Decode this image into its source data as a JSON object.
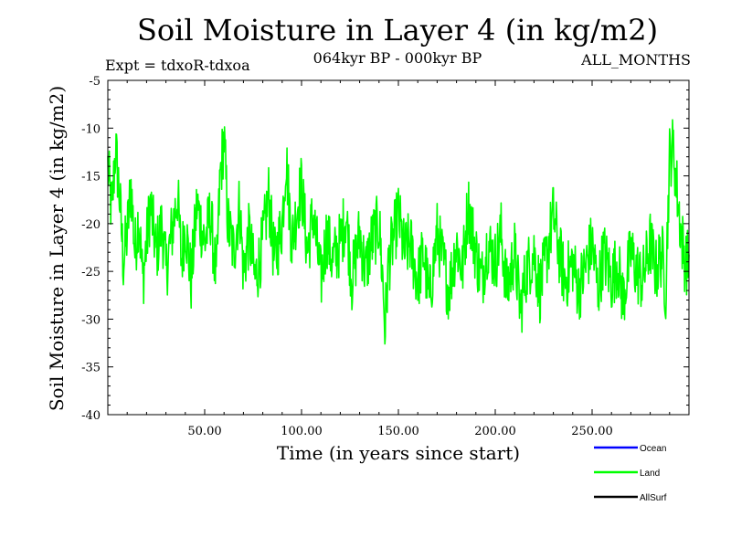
{
  "chart_data": {
    "type": "line",
    "title": "Soil Moisture in Layer 4 (in kg/m2)",
    "subtitle": "064kyr BP - 000kyr BP",
    "expt_label": "Expt = tdxoR-tdxoa",
    "months_label": "ALL_MONTHS",
    "xlabel": "Time (in years since start)",
    "ylabel": "Soil Moisture in Layer 4 (in kg/m2)",
    "xlim": [
      0,
      300
    ],
    "ylim": [
      -40,
      -5
    ],
    "x_ticks": [
      50,
      100,
      150,
      200,
      250
    ],
    "x_tick_labels": [
      "50.00",
      "100.00",
      "150.00",
      "200.00",
      "250.00"
    ],
    "y_ticks": [
      -5,
      -10,
      -15,
      -20,
      -25,
      -30,
      -35,
      -40
    ],
    "y_tick_labels": [
      "-5",
      "-10",
      "-15",
      "-20",
      "-25",
      "-30",
      "-35",
      "-40"
    ],
    "legend": [
      {
        "name": "Ocean",
        "color": "#0000ff"
      },
      {
        "name": "Land",
        "color": "#00ff00"
      },
      {
        "name": "AllSurf",
        "color": "#000000"
      }
    ],
    "series": [
      {
        "name": "Land",
        "color": "#00ff00",
        "x": [
          0,
          2,
          4,
          6,
          8,
          10,
          12,
          14,
          16,
          18,
          20,
          22,
          25,
          28,
          30,
          33,
          36,
          38,
          40,
          43,
          46,
          50,
          53,
          56,
          58,
          60,
          62,
          65,
          68,
          70,
          73,
          76,
          80,
          83,
          86,
          90,
          92,
          95,
          98,
          100,
          103,
          106,
          110,
          113,
          116,
          120,
          123,
          126,
          130,
          133,
          136,
          140,
          142,
          143,
          145,
          148,
          150,
          153,
          156,
          160,
          163,
          166,
          170,
          173,
          176,
          180,
          183,
          186,
          190,
          193,
          196,
          200,
          203,
          206,
          210,
          213,
          216,
          220,
          223,
          226,
          230,
          233,
          236,
          240,
          243,
          246,
          250,
          253,
          256,
          260,
          263,
          266,
          270,
          273,
          276,
          280,
          283,
          286,
          288,
          290,
          292,
          294,
          296,
          298
        ],
        "y": [
          -14,
          -19,
          -12,
          -17,
          -24,
          -21,
          -16,
          -23,
          -19,
          -26,
          -22,
          -18,
          -23,
          -20,
          -25,
          -21,
          -17,
          -24,
          -20,
          -26,
          -18,
          -22,
          -19,
          -26,
          -15,
          -11,
          -20,
          -23,
          -18,
          -25,
          -21,
          -26,
          -22,
          -17,
          -24,
          -20,
          -13,
          -22,
          -18,
          -16,
          -23,
          -19,
          -26,
          -21,
          -24,
          -22,
          -19,
          -26,
          -21,
          -25,
          -22,
          -20,
          -26,
          -31,
          -24,
          -21,
          -19,
          -23,
          -22,
          -26,
          -23,
          -28,
          -21,
          -24,
          -27,
          -22,
          -25,
          -18,
          -23,
          -26,
          -22,
          -24,
          -21,
          -27,
          -23,
          -29,
          -25,
          -23,
          -27,
          -24,
          -19,
          -23,
          -26,
          -24,
          -27,
          -25,
          -22,
          -27,
          -23,
          -26,
          -24,
          -28,
          -23,
          -25,
          -26,
          -22,
          -25,
          -23,
          -27,
          -13,
          -12,
          -17,
          -21,
          -24
        ]
      }
    ]
  }
}
